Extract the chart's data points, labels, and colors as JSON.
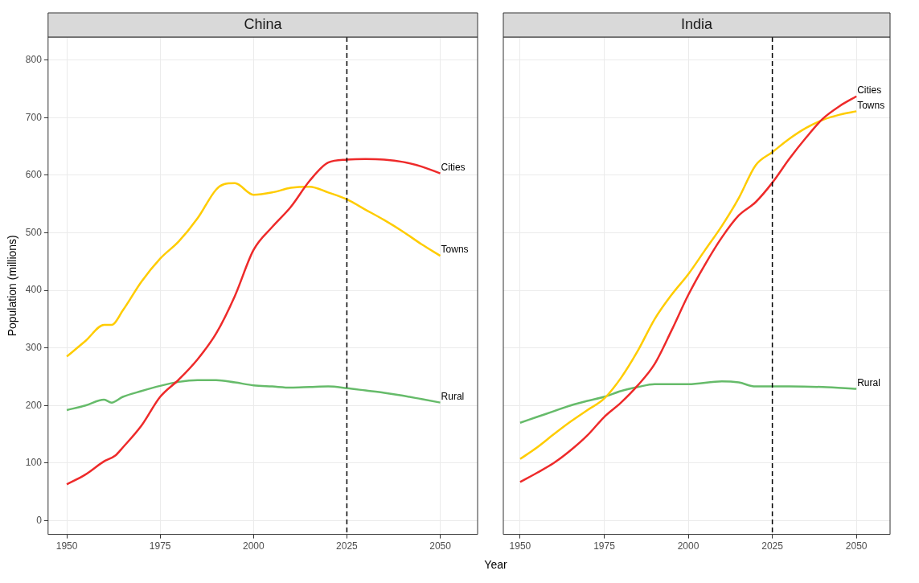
{
  "chart_data": [
    {
      "type": "line",
      "title": "China",
      "xlabel": "Year",
      "ylabel": "Population (millions)",
      "xlim": [
        1945,
        2060
      ],
      "ylim": [
        -24,
        840
      ],
      "xticks": [
        1950,
        1975,
        2000,
        2025,
        2050
      ],
      "yticks": [
        0,
        100,
        200,
        300,
        400,
        500,
        600,
        700,
        800
      ],
      "grid": true,
      "legend": false,
      "line_style": "solid",
      "marker": "none",
      "ref_lines": [
        {
          "axis": "x",
          "value": 2025,
          "color": "#000000",
          "line_style": "dashed"
        }
      ],
      "series": [
        {
          "name": "Cities",
          "color": "#ee2a2a",
          "x": [
            1950,
            1955,
            1960,
            1963,
            1965,
            1970,
            1975,
            1980,
            1985,
            1990,
            1995,
            2000,
            2005,
            2010,
            2015,
            2020,
            2025,
            2030,
            2035,
            2040,
            2045,
            2050
          ],
          "values": [
            63,
            80,
            103,
            113,
            127,
            165,
            215,
            245,
            280,
            325,
            390,
            470,
            510,
            545,
            590,
            622,
            627,
            628,
            627,
            623,
            615,
            603
          ]
        },
        {
          "name": "Towns",
          "color": "#ffcc00",
          "x": [
            1950,
            1955,
            1960,
            1962,
            1965,
            1970,
            1975,
            1980,
            1985,
            1990,
            1992,
            1995,
            2000,
            2005,
            2010,
            2015,
            2020,
            2025,
            2030,
            2035,
            2040,
            2045,
            2050
          ],
          "values": [
            285,
            312,
            340,
            340,
            365,
            415,
            455,
            485,
            525,
            575,
            584,
            586,
            566,
            570,
            578,
            580,
            570,
            558,
            540,
            522,
            502,
            480,
            460
          ]
        },
        {
          "name": "Rural",
          "color": "#66bb6a",
          "x": [
            1950,
            1955,
            1960,
            1962,
            1965,
            1970,
            1975,
            1980,
            1985,
            1990,
            1995,
            2000,
            2005,
            2010,
            2015,
            2020,
            2025,
            2030,
            2035,
            2040,
            2045,
            2050
          ],
          "values": [
            192,
            200,
            210,
            205,
            215,
            225,
            234,
            241,
            244,
            244,
            240,
            235,
            233,
            231,
            232,
            233,
            230,
            226,
            222,
            217,
            211,
            205
          ]
        }
      ]
    },
    {
      "type": "line",
      "title": "India",
      "xlim": [
        1945,
        2060
      ],
      "ylim": [
        -24,
        840
      ],
      "xticks": [
        1950,
        1975,
        2000,
        2025,
        2050
      ],
      "yticks": [
        0,
        100,
        200,
        300,
        400,
        500,
        600,
        700,
        800
      ],
      "tick_labels": "x",
      "grid": true,
      "legend": false,
      "line_style": "solid",
      "marker": "none",
      "ref_lines": [
        {
          "axis": "x",
          "value": 2025,
          "color": "#000000",
          "line_style": "dashed"
        }
      ],
      "series": [
        {
          "name": "Cities",
          "color": "#ee2a2a",
          "x": [
            1950,
            1955,
            1960,
            1965,
            1970,
            1975,
            1980,
            1985,
            1990,
            1995,
            2000,
            2005,
            2010,
            2015,
            2020,
            2025,
            2030,
            2035,
            2040,
            2045,
            2050
          ],
          "values": [
            67,
            83,
            100,
            122,
            148,
            180,
            205,
            235,
            272,
            330,
            392,
            445,
            492,
            530,
            553,
            587,
            628,
            665,
            698,
            720,
            737
          ]
        },
        {
          "name": "Towns",
          "color": "#ffcc00",
          "x": [
            1950,
            1955,
            1960,
            1965,
            1970,
            1975,
            1980,
            1985,
            1990,
            1995,
            2000,
            2005,
            2010,
            2015,
            2020,
            2025,
            2030,
            2035,
            2040,
            2045,
            2050
          ],
          "values": [
            107,
            127,
            150,
            172,
            192,
            212,
            248,
            295,
            350,
            392,
            428,
            470,
            512,
            560,
            617,
            640,
            663,
            682,
            696,
            705,
            711
          ]
        },
        {
          "name": "Rural",
          "color": "#66bb6a",
          "x": [
            1950,
            1955,
            1960,
            1965,
            1970,
            1975,
            1980,
            1985,
            1990,
            2000,
            2010,
            2015,
            2020,
            2025,
            2030,
            2040,
            2050
          ],
          "values": [
            170,
            180,
            190,
            200,
            208,
            215,
            225,
            232,
            237,
            237,
            242,
            240,
            233,
            233,
            233,
            232,
            229
          ]
        }
      ]
    }
  ]
}
